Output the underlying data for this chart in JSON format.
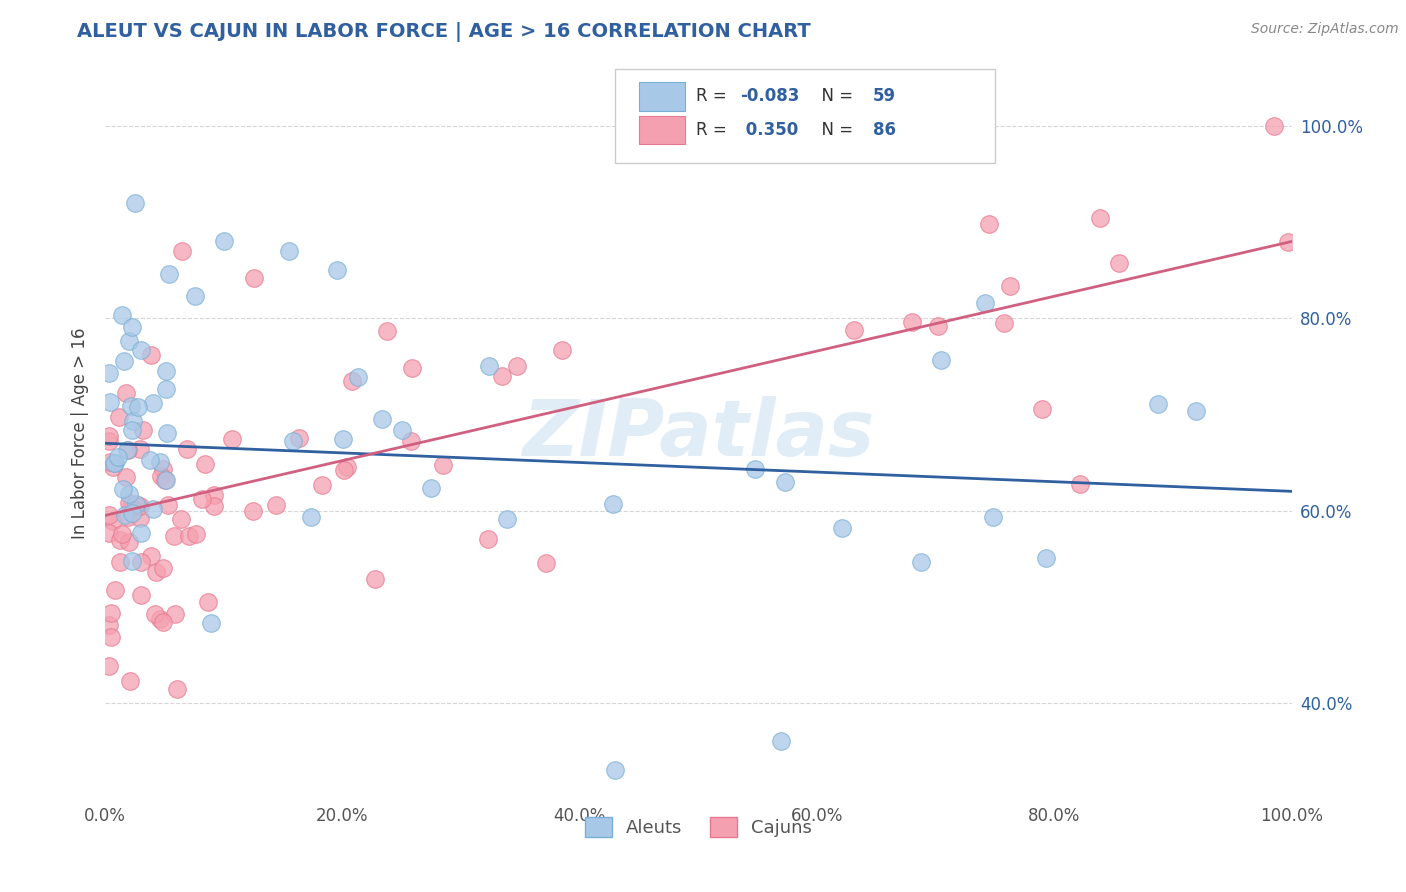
{
  "title": "ALEUT VS CAJUN IN LABOR FORCE | AGE > 16 CORRELATION CHART",
  "ylabel": "In Labor Force | Age > 16",
  "source": "Source: ZipAtlas.com",
  "watermark": "ZIPatlas",
  "aleut_R": -0.083,
  "aleut_N": 59,
  "cajun_R": 0.35,
  "cajun_N": 86,
  "xmin": 0.0,
  "xmax": 1.0,
  "ymin": 0.3,
  "ymax": 1.06,
  "yticks": [
    0.4,
    0.6,
    0.8,
    1.0
  ],
  "ytick_labels": [
    "40.0%",
    "60.0%",
    "80.0%",
    "100.0%"
  ],
  "xticks": [
    0.0,
    0.2,
    0.4,
    0.6,
    0.8,
    1.0
  ],
  "xtick_labels": [
    "0.0%",
    "20.0%",
    "40.0%",
    "60.0%",
    "80.0%",
    "100.0%"
  ],
  "aleut_color": "#a8c8e8",
  "cajun_color": "#f4a0b0",
  "aleut_edge_color": "#7aafd4",
  "cajun_edge_color": "#e87890",
  "aleut_line_color": "#3060a0",
  "cajun_line_color": "#d06080",
  "title_color": "#3060a0",
  "tick_color": "#3060a0",
  "background_color": "#ffffff",
  "grid_color": "#cccccc",
  "aleut_line_y0": 0.67,
  "aleut_line_y1": 0.62,
  "cajun_line_y0": 0.595,
  "cajun_line_y1": 0.88
}
